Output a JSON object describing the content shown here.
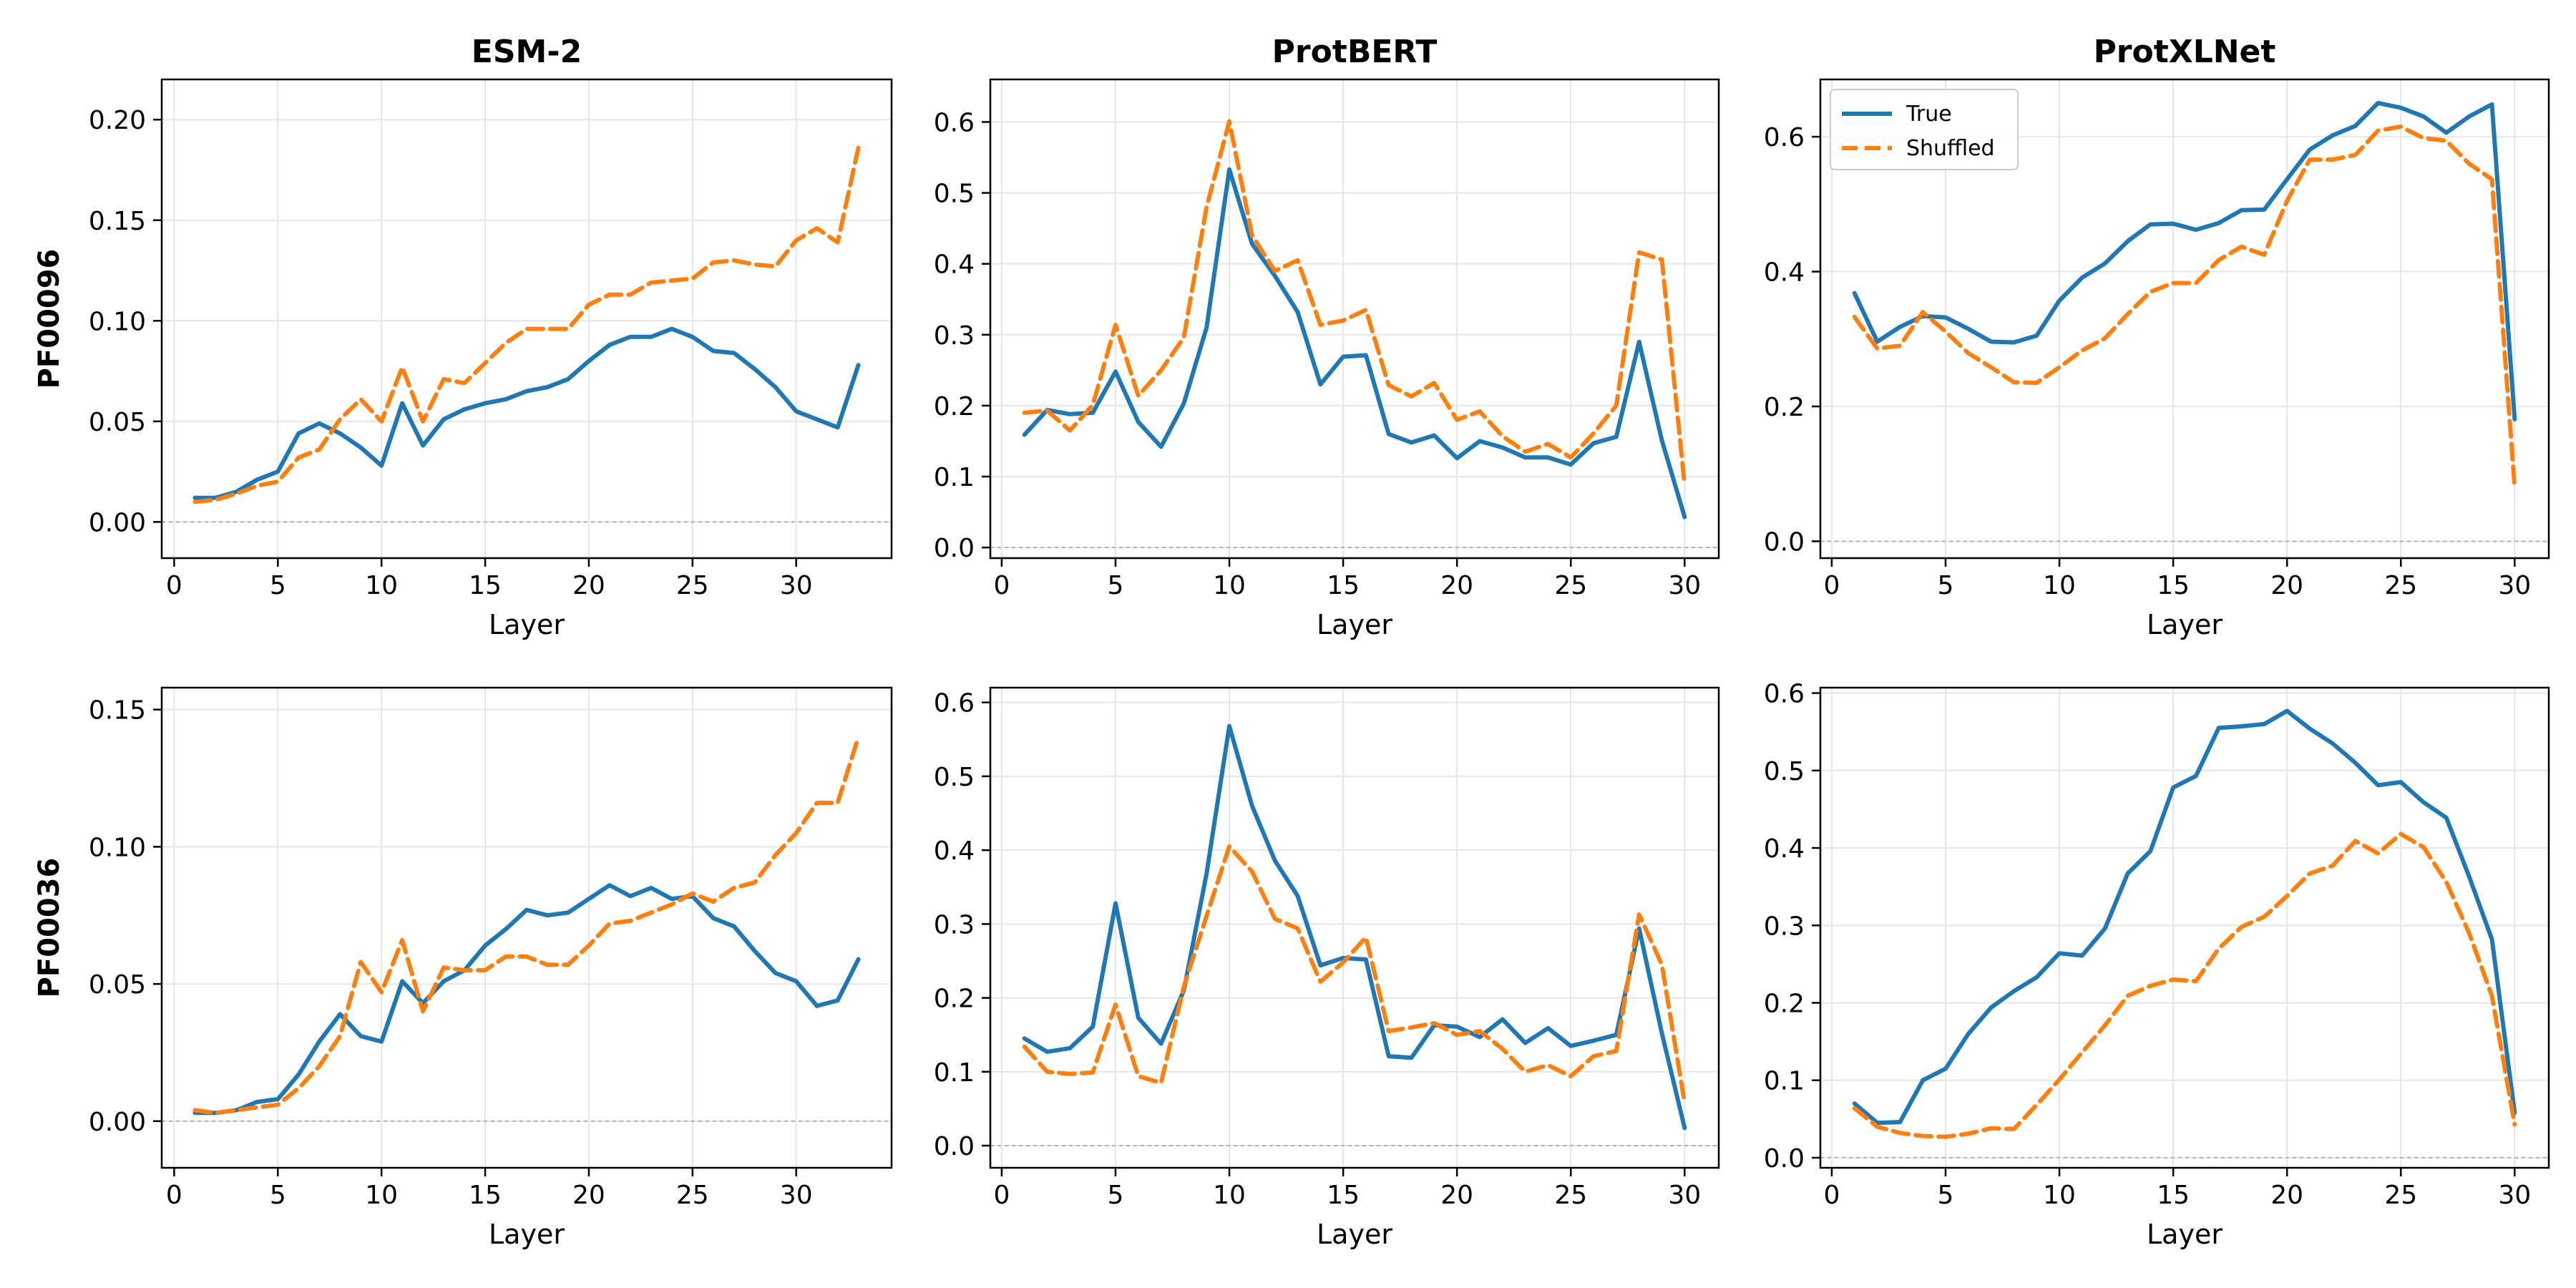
{
  "colors": {
    "true": "#1f77b4",
    "shuffled": "#ff7f0e",
    "grid": "#e6e6e6",
    "zero": "#b0b0b0"
  },
  "chart_data": [
    {
      "type": "line",
      "title": "ESM-2",
      "ylabel": "PF00096",
      "xlabel": "Layer",
      "xlim": [
        -0.6,
        34.6
      ],
      "ylim": [
        -0.018,
        0.22
      ],
      "xticks": [
        0,
        5,
        10,
        15,
        20,
        25,
        30
      ],
      "yticks": [
        0.0,
        0.05,
        0.1,
        0.15,
        0.2
      ],
      "ytick_labels": [
        "0.00",
        "0.05",
        "0.10",
        "0.15",
        "0.20"
      ],
      "legend": false,
      "x": [
        1,
        2,
        3,
        4,
        5,
        6,
        7,
        8,
        9,
        10,
        11,
        12,
        13,
        14,
        15,
        16,
        17,
        18,
        19,
        20,
        21,
        22,
        23,
        24,
        25,
        26,
        27,
        28,
        29,
        30,
        31,
        32,
        33
      ],
      "series": [
        {
          "name": "True",
          "values": [
            0.012,
            0.012,
            0.015,
            0.021,
            0.025,
            0.044,
            0.049,
            0.044,
            0.037,
            0.028,
            0.059,
            0.038,
            0.051,
            0.056,
            0.059,
            0.061,
            0.065,
            0.067,
            0.071,
            0.08,
            0.088,
            0.092,
            0.092,
            0.096,
            0.092,
            0.085,
            0.084,
            0.076,
            0.067,
            0.055,
            0.051,
            0.047,
            0.078
          ]
        },
        {
          "name": "Shuffled",
          "values": [
            0.01,
            0.011,
            0.014,
            0.018,
            0.02,
            0.032,
            0.036,
            0.051,
            0.061,
            0.05,
            0.077,
            0.05,
            0.071,
            0.069,
            0.079,
            0.089,
            0.096,
            0.096,
            0.096,
            0.108,
            0.113,
            0.113,
            0.119,
            0.12,
            0.121,
            0.129,
            0.13,
            0.128,
            0.127,
            0.14,
            0.146,
            0.139,
            0.186
          ]
        }
      ]
    },
    {
      "type": "line",
      "title": "ProtBERT",
      "ylabel": "",
      "xlabel": "Layer",
      "xlim": [
        -0.5,
        31.5
      ],
      "ylim": [
        -0.015,
        0.66
      ],
      "xticks": [
        0,
        5,
        10,
        15,
        20,
        25,
        30
      ],
      "yticks": [
        0.0,
        0.1,
        0.2,
        0.3,
        0.4,
        0.5,
        0.6
      ],
      "ytick_labels": [
        "0.0",
        "0.1",
        "0.2",
        "0.3",
        "0.4",
        "0.5",
        "0.6"
      ],
      "legend": false,
      "x": [
        1,
        2,
        3,
        4,
        5,
        6,
        7,
        8,
        9,
        10,
        11,
        12,
        13,
        14,
        15,
        16,
        17,
        18,
        19,
        20,
        21,
        22,
        23,
        24,
        25,
        26,
        27,
        28,
        29,
        30
      ],
      "series": [
        {
          "name": "True",
          "values": [
            0.159,
            0.194,
            0.188,
            0.19,
            0.248,
            0.177,
            0.142,
            0.203,
            0.31,
            0.533,
            0.428,
            0.383,
            0.332,
            0.23,
            0.269,
            0.271,
            0.16,
            0.148,
            0.158,
            0.126,
            0.15,
            0.141,
            0.127,
            0.127,
            0.117,
            0.147,
            0.156,
            0.29,
            0.151,
            0.043
          ]
        },
        {
          "name": "Shuffled",
          "values": [
            0.19,
            0.193,
            0.165,
            0.201,
            0.314,
            0.214,
            0.25,
            0.296,
            0.48,
            0.601,
            0.44,
            0.39,
            0.405,
            0.314,
            0.32,
            0.335,
            0.229,
            0.213,
            0.232,
            0.18,
            0.192,
            0.157,
            0.135,
            0.146,
            0.127,
            0.161,
            0.2,
            0.416,
            0.406,
            0.088
          ]
        }
      ]
    },
    {
      "type": "line",
      "title": "ProtXLNet",
      "ylabel": "",
      "xlabel": "Layer",
      "xlim": [
        -0.5,
        31.5
      ],
      "ylim": [
        -0.025,
        0.685
      ],
      "xticks": [
        0,
        5,
        10,
        15,
        20,
        25,
        30
      ],
      "yticks": [
        0.0,
        0.2,
        0.4,
        0.6
      ],
      "ytick_labels": [
        "0.0",
        "0.2",
        "0.4",
        "0.6"
      ],
      "legend": true,
      "legend_position": "top-left",
      "x": [
        1,
        2,
        3,
        4,
        5,
        6,
        7,
        8,
        9,
        10,
        11,
        12,
        13,
        14,
        15,
        16,
        17,
        18,
        19,
        20,
        21,
        22,
        23,
        24,
        25,
        26,
        27,
        28,
        29,
        30
      ],
      "series": [
        {
          "name": "True",
          "values": [
            0.368,
            0.296,
            0.318,
            0.334,
            0.332,
            0.315,
            0.296,
            0.295,
            0.305,
            0.357,
            0.391,
            0.412,
            0.445,
            0.47,
            0.471,
            0.462,
            0.472,
            0.491,
            0.492,
            0.537,
            0.581,
            0.602,
            0.616,
            0.65,
            0.643,
            0.63,
            0.606,
            0.63,
            0.648,
            0.181
          ]
        },
        {
          "name": "Shuffled",
          "values": [
            0.333,
            0.286,
            0.29,
            0.34,
            0.311,
            0.279,
            0.258,
            0.236,
            0.235,
            0.258,
            0.283,
            0.301,
            0.337,
            0.37,
            0.383,
            0.383,
            0.417,
            0.437,
            0.425,
            0.505,
            0.566,
            0.566,
            0.573,
            0.609,
            0.615,
            0.598,
            0.594,
            0.56,
            0.537,
            0.08
          ]
        }
      ]
    },
    {
      "type": "line",
      "title": "",
      "ylabel": "PF00036",
      "xlabel": "Layer",
      "xlim": [
        -0.6,
        34.6
      ],
      "ylim": [
        -0.017,
        0.158
      ],
      "xticks": [
        0,
        5,
        10,
        15,
        20,
        25,
        30
      ],
      "yticks": [
        0.0,
        0.05,
        0.1,
        0.15
      ],
      "ytick_labels": [
        "0.00",
        "0.05",
        "0.10",
        "0.15"
      ],
      "legend": false,
      "x": [
        1,
        2,
        3,
        4,
        5,
        6,
        7,
        8,
        9,
        10,
        11,
        12,
        13,
        14,
        15,
        16,
        17,
        18,
        19,
        20,
        21,
        22,
        23,
        24,
        25,
        26,
        27,
        28,
        29,
        30,
        31,
        32,
        33
      ],
      "series": [
        {
          "name": "True",
          "values": [
            0.003,
            0.003,
            0.004,
            0.007,
            0.008,
            0.017,
            0.029,
            0.039,
            0.031,
            0.029,
            0.051,
            0.043,
            0.051,
            0.055,
            0.064,
            0.07,
            0.077,
            0.075,
            0.076,
            0.081,
            0.086,
            0.082,
            0.085,
            0.081,
            0.082,
            0.074,
            0.071,
            0.062,
            0.054,
            0.051,
            0.042,
            0.044,
            0.059
          ]
        },
        {
          "name": "Shuffled",
          "values": [
            0.004,
            0.003,
            0.004,
            0.005,
            0.006,
            0.012,
            0.02,
            0.031,
            0.058,
            0.047,
            0.066,
            0.04,
            0.056,
            0.055,
            0.055,
            0.06,
            0.06,
            0.057,
            0.057,
            0.064,
            0.072,
            0.073,
            0.076,
            0.079,
            0.083,
            0.08,
            0.085,
            0.087,
            0.097,
            0.105,
            0.116,
            0.116,
            0.14
          ]
        }
      ]
    },
    {
      "type": "line",
      "title": "",
      "ylabel": "",
      "xlabel": "Layer",
      "xlim": [
        -0.5,
        31.5
      ],
      "ylim": [
        -0.03,
        0.62
      ],
      "xticks": [
        0,
        5,
        10,
        15,
        20,
        25,
        30
      ],
      "yticks": [
        0.0,
        0.1,
        0.2,
        0.3,
        0.4,
        0.5,
        0.6
      ],
      "ytick_labels": [
        "0.0",
        "0.1",
        "0.2",
        "0.3",
        "0.4",
        "0.5",
        "0.6"
      ],
      "legend": false,
      "x": [
        1,
        2,
        3,
        4,
        5,
        6,
        7,
        8,
        9,
        10,
        11,
        12,
        13,
        14,
        15,
        16,
        17,
        18,
        19,
        20,
        21,
        22,
        23,
        24,
        25,
        26,
        27,
        28,
        29,
        30
      ],
      "series": [
        {
          "name": "True",
          "values": [
            0.145,
            0.127,
            0.132,
            0.161,
            0.328,
            0.173,
            0.138,
            0.21,
            0.368,
            0.568,
            0.46,
            0.386,
            0.338,
            0.244,
            0.254,
            0.252,
            0.121,
            0.119,
            0.163,
            0.161,
            0.147,
            0.171,
            0.139,
            0.159,
            0.135,
            0.142,
            0.15,
            0.294,
            0.152,
            0.024
          ]
        },
        {
          "name": "Shuffled",
          "values": [
            0.134,
            0.1,
            0.097,
            0.099,
            0.191,
            0.094,
            0.085,
            0.215,
            0.311,
            0.405,
            0.371,
            0.307,
            0.294,
            0.222,
            0.248,
            0.282,
            0.155,
            0.16,
            0.166,
            0.15,
            0.155,
            0.131,
            0.1,
            0.109,
            0.094,
            0.121,
            0.128,
            0.313,
            0.245,
            0.058
          ]
        }
      ]
    },
    {
      "type": "line",
      "title": "",
      "ylabel": "",
      "xlabel": "Layer",
      "xlim": [
        -0.5,
        31.5
      ],
      "ylim": [
        -0.013,
        0.607
      ],
      "xticks": [
        0,
        5,
        10,
        15,
        20,
        25,
        30
      ],
      "yticks": [
        0.0,
        0.1,
        0.2,
        0.3,
        0.4,
        0.5,
        0.6
      ],
      "ytick_labels": [
        "0.0",
        "0.1",
        "0.2",
        "0.3",
        "0.4",
        "0.5",
        "0.6"
      ],
      "legend": false,
      "x": [
        1,
        2,
        3,
        4,
        5,
        6,
        7,
        8,
        9,
        10,
        11,
        12,
        13,
        14,
        15,
        16,
        17,
        18,
        19,
        20,
        21,
        22,
        23,
        24,
        25,
        26,
        27,
        28,
        29,
        30
      ],
      "series": [
        {
          "name": "True",
          "values": [
            0.07,
            0.045,
            0.046,
            0.1,
            0.115,
            0.16,
            0.194,
            0.215,
            0.233,
            0.264,
            0.261,
            0.296,
            0.367,
            0.396,
            0.478,
            0.493,
            0.555,
            0.557,
            0.56,
            0.577,
            0.554,
            0.535,
            0.51,
            0.481,
            0.485,
            0.459,
            0.439,
            0.363,
            0.282,
            0.058
          ]
        },
        {
          "name": "Shuffled",
          "values": [
            0.064,
            0.04,
            0.032,
            0.028,
            0.027,
            0.031,
            0.038,
            0.037,
            0.068,
            0.101,
            0.136,
            0.171,
            0.209,
            0.222,
            0.23,
            0.228,
            0.27,
            0.298,
            0.311,
            0.338,
            0.367,
            0.377,
            0.409,
            0.393,
            0.418,
            0.401,
            0.356,
            0.29,
            0.209,
            0.043
          ]
        }
      ]
    }
  ]
}
